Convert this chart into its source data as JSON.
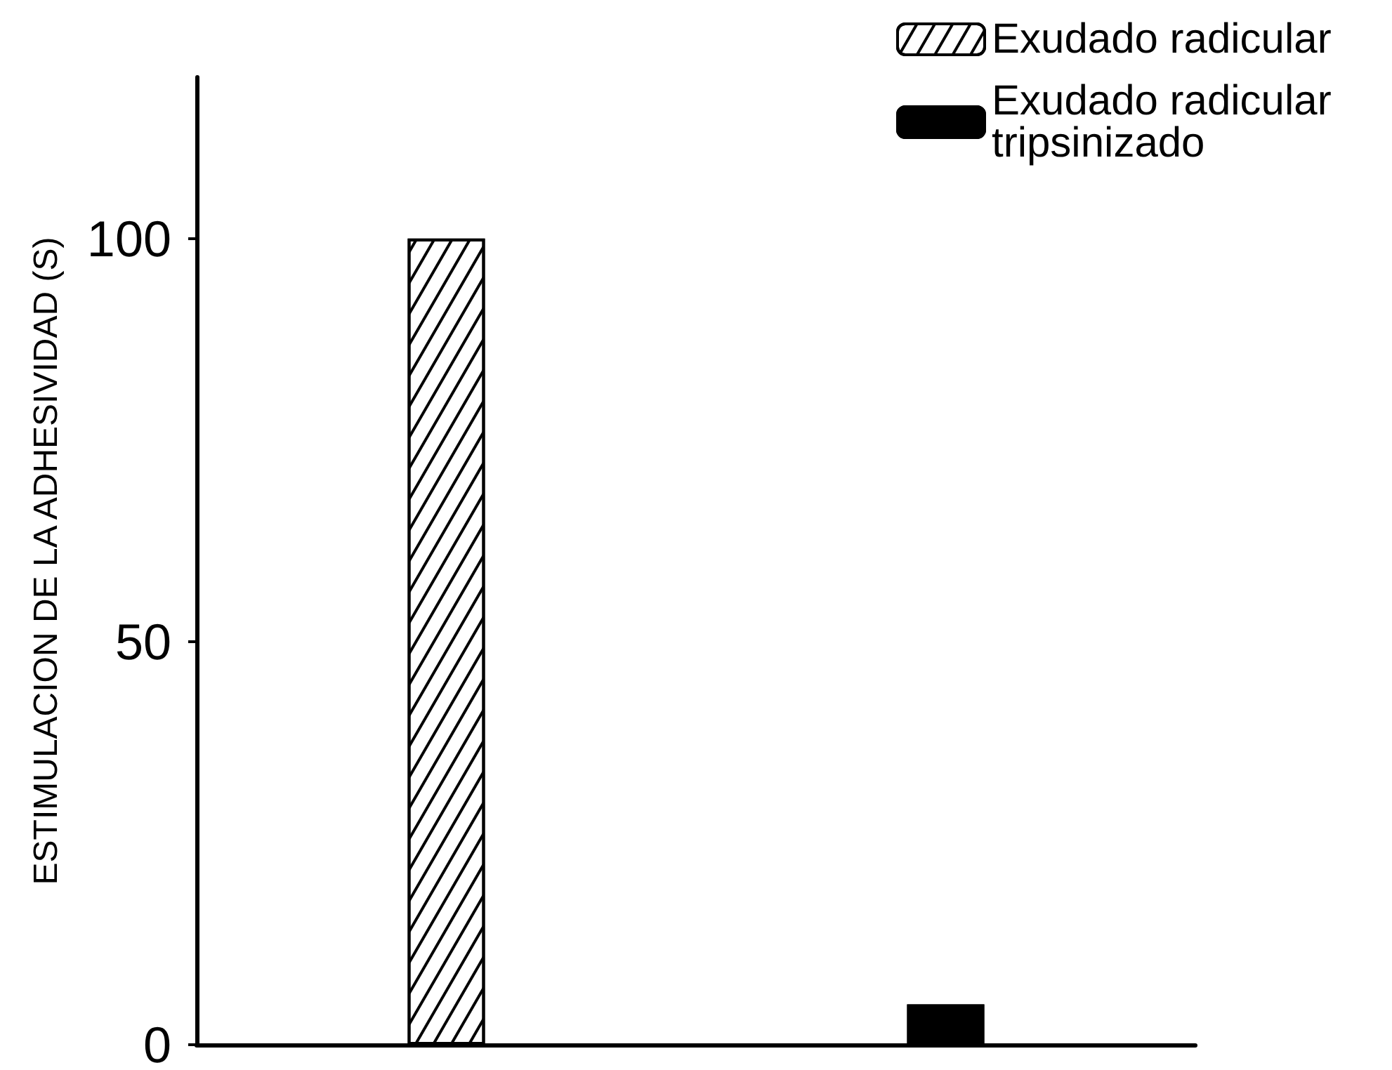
{
  "chart_data": {
    "type": "bar",
    "ylabel": "ESTIMULACION DE LA ADHESIVIDAD (S)",
    "categories": [
      null,
      null
    ],
    "series": [
      {
        "name": "Exudado radicular",
        "color": "#ffffff",
        "values": [
          100,
          null
        ]
      },
      {
        "name": "Exudado radicular tripsinizado",
        "color": "#000000",
        "values": [
          null,
          5
        ]
      }
    ],
    "ylim": [
      0,
      120
    ],
    "yticks": [
      0,
      50,
      100
    ],
    "tick_labels": "y",
    "grid": false,
    "legend": "top right"
  }
}
